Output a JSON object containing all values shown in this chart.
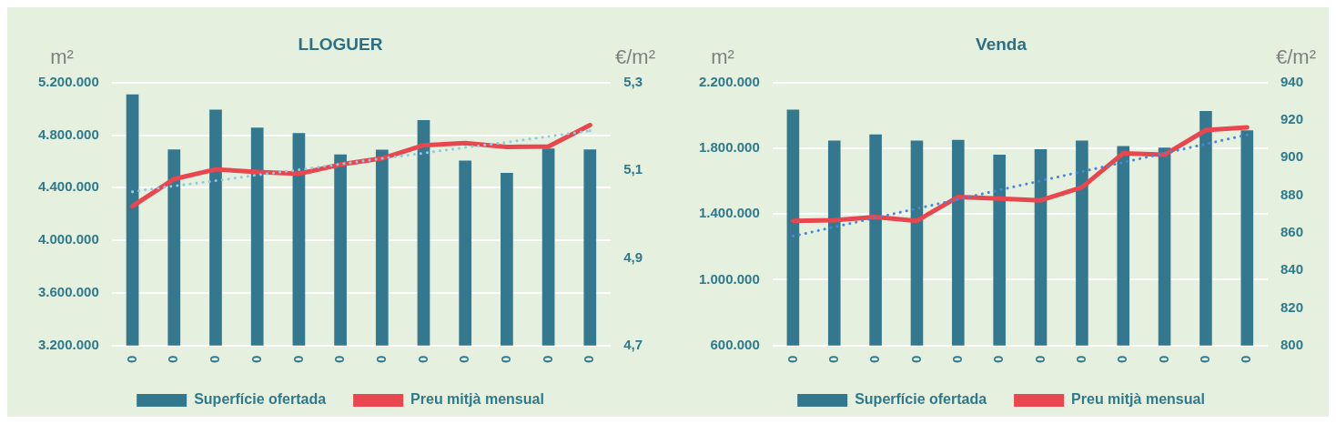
{
  "chart_data": [
    {
      "type": "bar",
      "title": "LLOGUER",
      "ylabel": "m²",
      "y2label": "€/m²",
      "categories": [
        "0",
        "0",
        "0",
        "0",
        "0",
        "0",
        "0",
        "0",
        "0",
        "0",
        "0",
        "0"
      ],
      "series": [
        {
          "name": "Superfície ofertada",
          "color": "#33788e",
          "values": [
            5111000,
            4692000,
            4994000,
            4857000,
            4816000,
            4654000,
            4689000,
            4914000,
            4606000,
            4514000,
            4698000,
            4692000
          ]
        },
        {
          "name": "Preu mitjà mensual",
          "type": "line",
          "axis": "y2",
          "color": "#e8474f",
          "line_style": "solid",
          "values": [
            5.018,
            5.08,
            5.102,
            5.096,
            5.092,
            5.113,
            5.127,
            5.157,
            5.162,
            5.153,
            5.154,
            5.203
          ]
        },
        {
          "type": "line",
          "axis": "y2",
          "color": "#8fcbe0",
          "line_style": "dotted",
          "values": [
            5.051,
            5.064,
            5.076,
            5.089,
            5.101,
            5.114,
            5.127,
            5.139,
            5.152,
            5.164,
            5.177,
            5.19
          ]
        }
      ],
      "ylim": [
        3200000,
        5200000
      ],
      "yticks": [
        {
          "value": 3200000,
          "label": "3.200.000"
        },
        {
          "value": 3600000,
          "label": "3.600.000"
        },
        {
          "value": 4000000,
          "label": "4.000.000"
        },
        {
          "value": 4400000,
          "label": "4.400.000"
        },
        {
          "value": 4800000,
          "label": "4.800.000"
        },
        {
          "value": 5200000,
          "label": "5.200.000"
        }
      ],
      "y2lim": [
        4.7,
        5.3
      ],
      "y2ticks": [
        {
          "value": 4.7,
          "label": "4,7"
        },
        {
          "value": 4.9,
          "label": "4,9"
        },
        {
          "value": 5.1,
          "label": "5,1"
        },
        {
          "value": 5.3,
          "label": "5,3"
        }
      ],
      "grid": "y",
      "legend": "bottom"
    },
    {
      "type": "bar",
      "title": "Venda",
      "ylabel": "m²",
      "y2label": "€/m²",
      "categories": [
        "0",
        "0",
        "0",
        "0",
        "0",
        "0",
        "0",
        "0",
        "0",
        "0",
        "0",
        "0"
      ],
      "series": [
        {
          "name": "Superfície ofertada",
          "color": "#33788e",
          "values": [
            2035000,
            1847000,
            1885000,
            1847000,
            1852000,
            1761000,
            1794000,
            1847000,
            1814000,
            1804000,
            2027000,
            1910000
          ]
        },
        {
          "name": "Preu mitjà mensual",
          "type": "line",
          "axis": "y2",
          "color": "#e8474f",
          "line_style": "solid",
          "values": [
            866.4,
            866.7,
            868.4,
            866.4,
            879.1,
            878.2,
            877.3,
            884.2,
            902.4,
            901.6,
            914.7,
            916.2
          ]
        },
        {
          "type": "line",
          "axis": "y2",
          "color": "#4a86d6",
          "line_style": "dotted",
          "values": [
            858.2,
            863.1,
            868.0,
            872.9,
            877.8,
            882.8,
            887.7,
            892.6,
            897.5,
            902.4,
            907.3,
            912.2
          ]
        }
      ],
      "ylim": [
        600000,
        2200000
      ],
      "yticks": [
        {
          "value": 600000,
          "label": "600.000"
        },
        {
          "value": 1000000,
          "label": "1.000.000"
        },
        {
          "value": 1400000,
          "label": "1.400.000"
        },
        {
          "value": 1800000,
          "label": "1.800.000"
        },
        {
          "value": 2200000,
          "label": "2.200.000"
        }
      ],
      "y2lim": [
        800,
        940
      ],
      "y2ticks": [
        800,
        820,
        840,
        860,
        880,
        900,
        920,
        940
      ],
      "grid": "y",
      "legend": "bottom"
    }
  ]
}
